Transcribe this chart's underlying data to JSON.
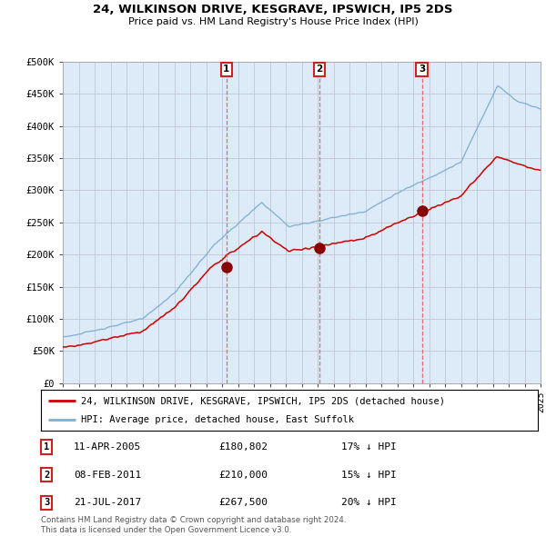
{
  "title": "24, WILKINSON DRIVE, KESGRAVE, IPSWICH, IP5 2DS",
  "subtitle": "Price paid vs. HM Land Registry's House Price Index (HPI)",
  "x_start_year": 1995,
  "x_end_year": 2025,
  "ylim": [
    0,
    500000
  ],
  "yticks": [
    0,
    50000,
    100000,
    150000,
    200000,
    250000,
    300000,
    350000,
    400000,
    450000,
    500000
  ],
  "ytick_labels": [
    "£0",
    "£50K",
    "£100K",
    "£150K",
    "£200K",
    "£250K",
    "£300K",
    "£350K",
    "£400K",
    "£450K",
    "£500K"
  ],
  "sale1_date": 2005.275,
  "sale1_price": 180802,
  "sale1_label": "1",
  "sale2_date": 2011.1,
  "sale2_price": 210000,
  "sale2_label": "2",
  "sale3_date": 2017.55,
  "sale3_price": 267500,
  "sale3_label": "3",
  "hpi_color": "#7bafd4",
  "price_color": "#cc0000",
  "sale_marker_color": "#880000",
  "vline_color": "#ee5555",
  "bg_color": "#ddeaf7",
  "grid_color": "#bbbbcc",
  "legend_line1": "24, WILKINSON DRIVE, KESGRAVE, IPSWICH, IP5 2DS (detached house)",
  "legend_line2": "HPI: Average price, detached house, East Suffolk",
  "sale_rows": [
    [
      "1",
      "11-APR-2005",
      "£180,802",
      "17% ↓ HPI"
    ],
    [
      "2",
      "08-FEB-2011",
      "£210,000",
      "15% ↓ HPI"
    ],
    [
      "3",
      "21-JUL-2017",
      "£267,500",
      "20% ↓ HPI"
    ]
  ],
  "footer": "Contains HM Land Registry data © Crown copyright and database right 2024.\nThis data is licensed under the Open Government Licence v3.0."
}
